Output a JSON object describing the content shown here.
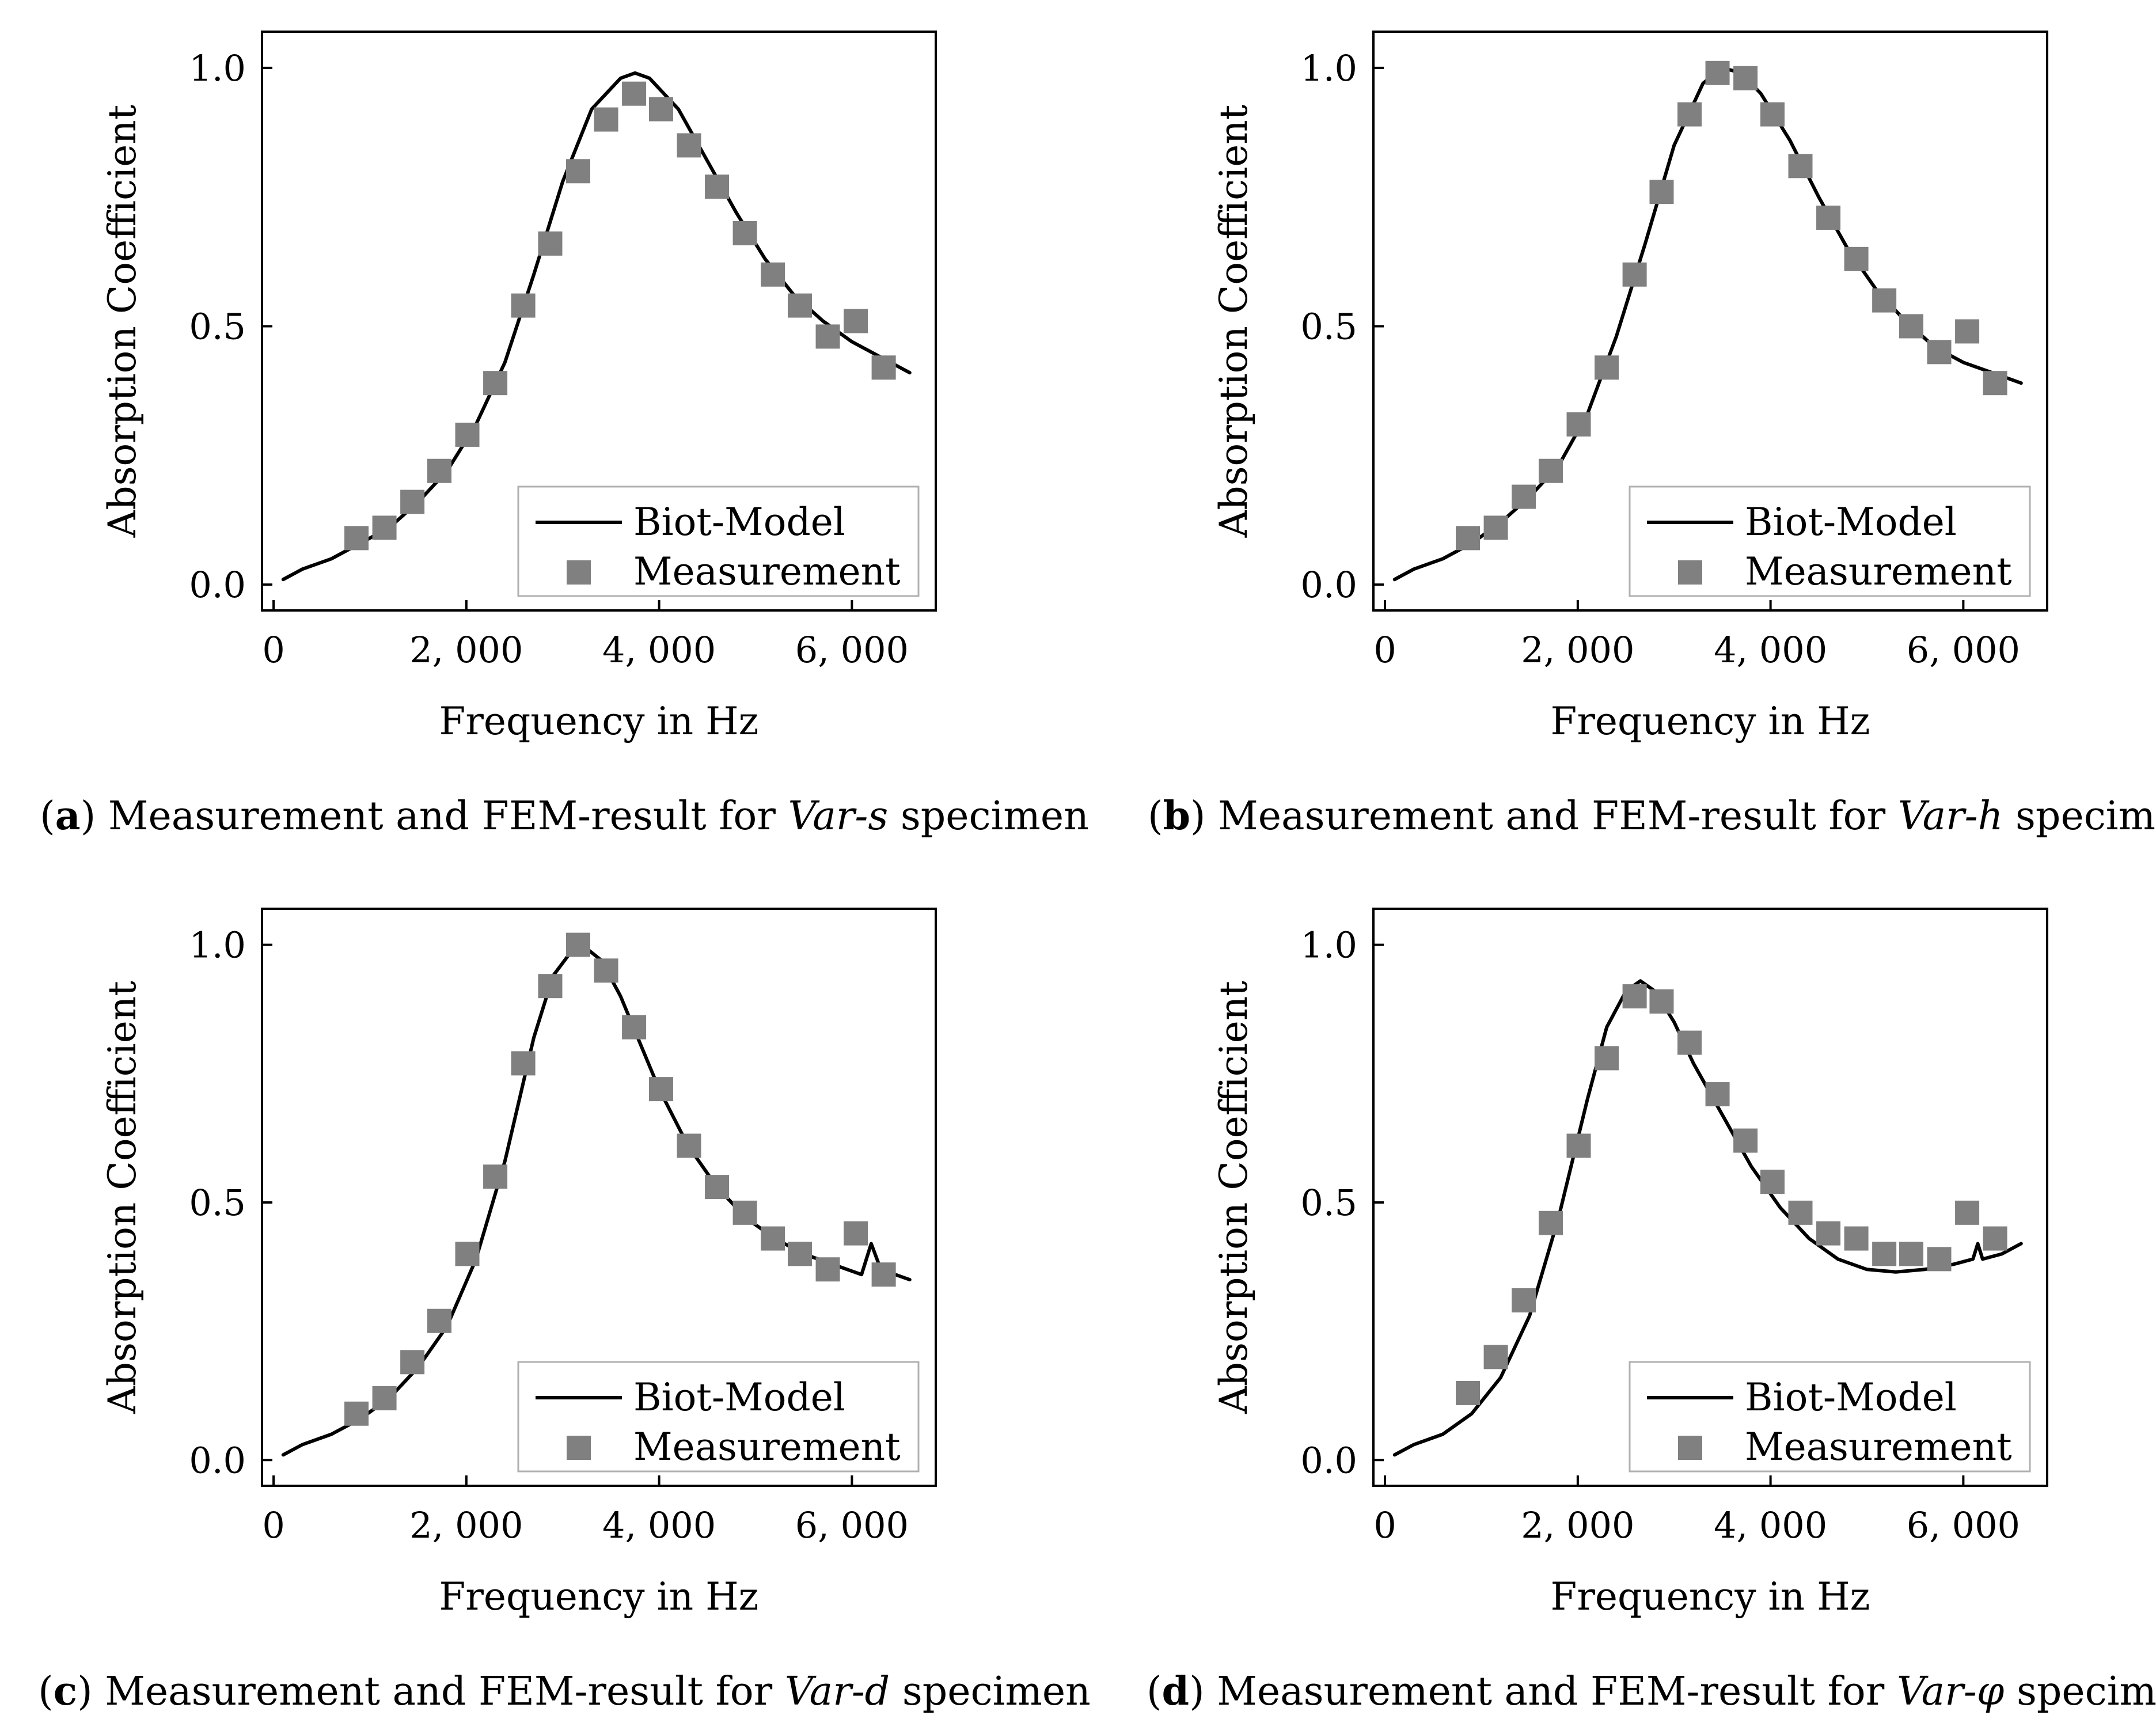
{
  "chart_data": [
    {
      "id": "a",
      "type": "line+scatter",
      "caption_label": "a",
      "caption_pre": "Measurement and FEM-result for ",
      "caption_var": "Var-s",
      "caption_post": " specimen",
      "xlabel": "Frequency in Hz",
      "ylabel": "Absorption Coefficient",
      "xlim": [
        -120,
        6870
      ],
      "ylim": [
        -0.05,
        1.07
      ],
      "xticks": [
        0,
        2000,
        4000,
        6000
      ],
      "xtick_labels": [
        "0",
        "2, 000",
        "4, 000",
        "6, 000"
      ],
      "yticks": [
        0.0,
        0.5,
        1.0
      ],
      "ytick_labels": [
        "0.0",
        "0.5",
        "1.0"
      ],
      "legend": {
        "position": "bottom-right",
        "entries": [
          "Biot-Model",
          "Measurement"
        ]
      },
      "model": {
        "name": "Biot-Model",
        "x": [
          100,
          300,
          600,
          900,
          1200,
          1500,
          1800,
          2100,
          2400,
          2700,
          3000,
          3300,
          3600,
          3750,
          3900,
          4200,
          4500,
          4800,
          5100,
          5400,
          5700,
          6000,
          6300,
          6600
        ],
        "y": [
          0.01,
          0.03,
          0.05,
          0.08,
          0.11,
          0.16,
          0.22,
          0.31,
          0.43,
          0.6,
          0.78,
          0.92,
          0.98,
          0.99,
          0.98,
          0.92,
          0.82,
          0.72,
          0.63,
          0.56,
          0.51,
          0.47,
          0.44,
          0.41
        ]
      },
      "measurement": {
        "name": "Measurement",
        "x": [
          860,
          1150,
          1440,
          1720,
          2010,
          2300,
          2590,
          2870,
          3160,
          3450,
          3740,
          4020,
          4310,
          4600,
          4890,
          5180,
          5460,
          5750,
          6040,
          6330
        ],
        "y": [
          0.09,
          0.11,
          0.16,
          0.22,
          0.29,
          0.39,
          0.54,
          0.66,
          0.8,
          0.9,
          0.95,
          0.92,
          0.85,
          0.77,
          0.68,
          0.6,
          0.54,
          0.48,
          0.51,
          0.42
        ]
      }
    },
    {
      "id": "b",
      "type": "line+scatter",
      "caption_label": "b",
      "caption_pre": "Measurement and FEM-result for ",
      "caption_var": "Var-h",
      "caption_post": " specimen",
      "xlabel": "Frequency in Hz",
      "ylabel": "Absorption Coefficient",
      "xlim": [
        -120,
        6870
      ],
      "ylim": [
        -0.05,
        1.07
      ],
      "xticks": [
        0,
        2000,
        4000,
        6000
      ],
      "xtick_labels": [
        "0",
        "2, 000",
        "4, 000",
        "6, 000"
      ],
      "yticks": [
        0.0,
        0.5,
        1.0
      ],
      "ytick_labels": [
        "0.0",
        "0.5",
        "1.0"
      ],
      "legend": {
        "position": "bottom-right",
        "entries": [
          "Biot-Model",
          "Measurement"
        ]
      },
      "model": {
        "name": "Biot-Model",
        "x": [
          100,
          300,
          600,
          900,
          1200,
          1500,
          1800,
          2100,
          2400,
          2700,
          3000,
          3300,
          3500,
          3700,
          3900,
          4200,
          4500,
          4800,
          5100,
          5400,
          5700,
          6000,
          6300,
          6600
        ],
        "y": [
          0.01,
          0.03,
          0.05,
          0.08,
          0.12,
          0.17,
          0.23,
          0.33,
          0.48,
          0.66,
          0.85,
          0.97,
          1.0,
          0.99,
          0.95,
          0.86,
          0.75,
          0.65,
          0.57,
          0.51,
          0.46,
          0.43,
          0.41,
          0.39
        ]
      },
      "measurement": {
        "name": "Measurement",
        "x": [
          860,
          1150,
          1440,
          1720,
          2010,
          2300,
          2590,
          2870,
          3160,
          3450,
          3740,
          4020,
          4310,
          4600,
          4890,
          5180,
          5460,
          5750,
          6040,
          6330
        ],
        "y": [
          0.09,
          0.11,
          0.17,
          0.22,
          0.31,
          0.42,
          0.6,
          0.76,
          0.91,
          0.99,
          0.98,
          0.91,
          0.81,
          0.71,
          0.63,
          0.55,
          0.5,
          0.45,
          0.49,
          0.39
        ]
      }
    },
    {
      "id": "c",
      "type": "line+scatter",
      "caption_label": "c",
      "caption_pre": "Measurement and FEM-result for ",
      "caption_var": "Var-d",
      "caption_post": " specimen",
      "xlabel": "Frequency in Hz",
      "ylabel": "Absorption Coefficient",
      "xlim": [
        -120,
        6870
      ],
      "ylim": [
        -0.05,
        1.07
      ],
      "xticks": [
        0,
        2000,
        4000,
        6000
      ],
      "xtick_labels": [
        "0",
        "2, 000",
        "4, 000",
        "6, 000"
      ],
      "yticks": [
        0.0,
        0.5,
        1.0
      ],
      "ytick_labels": [
        "0.0",
        "0.5",
        "1.0"
      ],
      "legend": {
        "position": "bottom-right",
        "entries": [
          "Biot-Model",
          "Measurement"
        ]
      },
      "model": {
        "name": "Biot-Model",
        "x": [
          100,
          300,
          600,
          900,
          1200,
          1500,
          1800,
          2100,
          2400,
          2700,
          2900,
          3100,
          3200,
          3400,
          3600,
          3800,
          4000,
          4300,
          4600,
          4900,
          5200,
          5500,
          5800,
          6100,
          6200,
          6300,
          6600
        ],
        "y": [
          0.01,
          0.03,
          0.05,
          0.08,
          0.12,
          0.18,
          0.26,
          0.39,
          0.58,
          0.82,
          0.94,
          0.99,
          1.0,
          0.97,
          0.9,
          0.81,
          0.72,
          0.61,
          0.53,
          0.47,
          0.43,
          0.4,
          0.38,
          0.36,
          0.42,
          0.37,
          0.35
        ]
      },
      "measurement": {
        "name": "Measurement",
        "x": [
          860,
          1150,
          1440,
          1720,
          2010,
          2300,
          2590,
          2870,
          3160,
          3450,
          3740,
          4020,
          4310,
          4600,
          4890,
          5180,
          5460,
          5750,
          6040,
          6330
        ],
        "y": [
          0.09,
          0.12,
          0.19,
          0.27,
          0.4,
          0.55,
          0.77,
          0.92,
          1.0,
          0.95,
          0.84,
          0.72,
          0.61,
          0.53,
          0.48,
          0.43,
          0.4,
          0.37,
          0.44,
          0.36
        ]
      }
    },
    {
      "id": "d",
      "type": "line+scatter",
      "caption_label": "d",
      "caption_pre": "Measurement and FEM-result for ",
      "caption_var": "Var-φ",
      "caption_post": " specimen",
      "xlabel": "Frequency in Hz",
      "ylabel": "Absorption Coefficient",
      "xlim": [
        -120,
        6870
      ],
      "ylim": [
        -0.05,
        1.07
      ],
      "xticks": [
        0,
        2000,
        4000,
        6000
      ],
      "xtick_labels": [
        "0",
        "2, 000",
        "4, 000",
        "6, 000"
      ],
      "yticks": [
        0.0,
        0.5,
        1.0
      ],
      "ytick_labels": [
        "0.0",
        "0.5",
        "1.0"
      ],
      "legend": {
        "position": "bottom-right",
        "entries": [
          "Biot-Model",
          "Measurement"
        ]
      },
      "model": {
        "name": "Biot-Model",
        "x": [
          100,
          300,
          600,
          900,
          1200,
          1500,
          1800,
          2100,
          2300,
          2500,
          2650,
          2800,
          3000,
          3200,
          3500,
          3800,
          4100,
          4400,
          4700,
          5000,
          5300,
          5600,
          5900,
          6100,
          6150,
          6200,
          6400,
          6600
        ],
        "y": [
          0.01,
          0.03,
          0.05,
          0.09,
          0.16,
          0.28,
          0.47,
          0.7,
          0.84,
          0.91,
          0.93,
          0.91,
          0.85,
          0.77,
          0.67,
          0.57,
          0.49,
          0.43,
          0.39,
          0.37,
          0.365,
          0.37,
          0.38,
          0.39,
          0.42,
          0.39,
          0.4,
          0.42
        ]
      },
      "measurement": {
        "name": "Measurement",
        "x": [
          860,
          1150,
          1440,
          1720,
          2010,
          2300,
          2590,
          2870,
          3160,
          3450,
          3740,
          4020,
          4310,
          4600,
          4890,
          5180,
          5460,
          5750,
          6040,
          6330
        ],
        "y": [
          0.13,
          0.2,
          0.31,
          0.46,
          0.61,
          0.78,
          0.9,
          0.89,
          0.81,
          0.71,
          0.62,
          0.54,
          0.48,
          0.44,
          0.43,
          0.4,
          0.4,
          0.39,
          0.48,
          0.43
        ]
      }
    }
  ]
}
